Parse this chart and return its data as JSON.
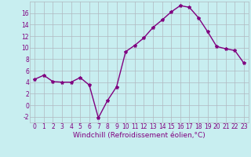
{
  "x": [
    0,
    1,
    2,
    3,
    4,
    5,
    6,
    7,
    8,
    9,
    10,
    11,
    12,
    13,
    14,
    15,
    16,
    17,
    18,
    19,
    20,
    21,
    22,
    23
  ],
  "y": [
    4.5,
    5.2,
    4.1,
    4.0,
    4.0,
    4.8,
    3.5,
    -2.2,
    0.8,
    3.2,
    9.3,
    10.4,
    11.7,
    13.5,
    14.8,
    16.2,
    17.3,
    17.0,
    15.2,
    12.8,
    10.2,
    9.8,
    9.5,
    7.3
  ],
  "line_color": "#800080",
  "marker": "*",
  "marker_size": 3,
  "bg_color": "#c8eef0",
  "grid_color": "#b0b8c0",
  "xlabel": "Windchill (Refroidissement éolien,°C)",
  "ylim": [
    -3,
    18
  ],
  "xlim": [
    -0.5,
    23.5
  ],
  "yticks": [
    -2,
    0,
    2,
    4,
    6,
    8,
    10,
    12,
    14,
    16
  ],
  "xticks": [
    0,
    1,
    2,
    3,
    4,
    5,
    6,
    7,
    8,
    9,
    10,
    11,
    12,
    13,
    14,
    15,
    16,
    17,
    18,
    19,
    20,
    21,
    22,
    23
  ],
  "tick_label_color": "#800080",
  "tick_label_size": 5.5,
  "xlabel_size": 6.5,
  "linewidth": 1.0
}
